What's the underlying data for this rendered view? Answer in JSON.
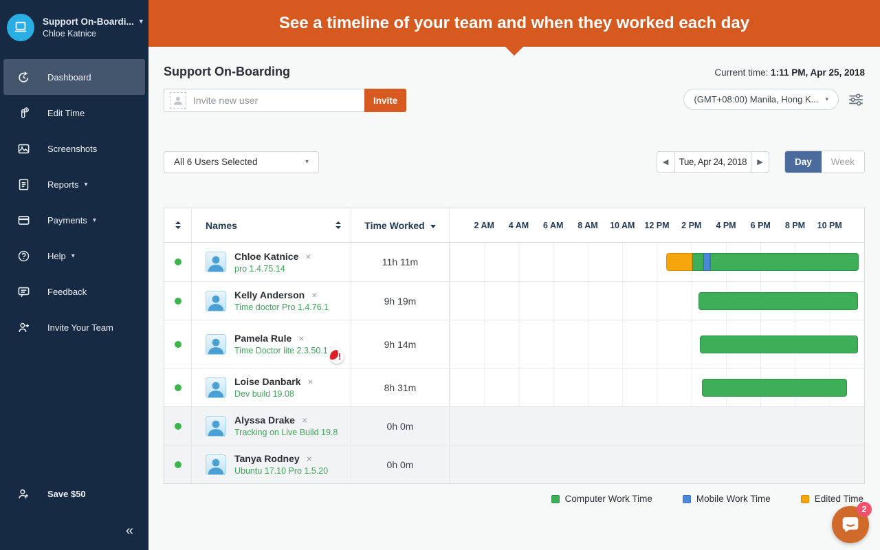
{
  "banner": {
    "text": "See a timeline of your team and when they worked each day"
  },
  "sidebar": {
    "company": "Support On-Boardi...",
    "user_name": "Chloe Katnice",
    "items": [
      {
        "id": "dashboard",
        "label": "Dashboard",
        "icon": "dashboard-icon",
        "active": true,
        "caret": false
      },
      {
        "id": "edit-time",
        "label": "Edit Time",
        "icon": "edit-time-icon",
        "active": false,
        "caret": false
      },
      {
        "id": "screenshots",
        "label": "Screenshots",
        "icon": "screenshots-icon",
        "active": false,
        "caret": false
      },
      {
        "id": "reports",
        "label": "Reports",
        "icon": "reports-icon",
        "active": false,
        "caret": true
      },
      {
        "id": "payments",
        "label": "Payments",
        "icon": "payments-icon",
        "active": false,
        "caret": true
      },
      {
        "id": "help",
        "label": "Help",
        "icon": "help-icon",
        "active": false,
        "caret": true
      },
      {
        "id": "feedback",
        "label": "Feedback",
        "icon": "feedback-icon",
        "active": false,
        "caret": false
      },
      {
        "id": "invite-your-team",
        "label": "Invite Your Team",
        "icon": "invite-icon",
        "active": false,
        "caret": false
      }
    ],
    "save_label": "Save $50",
    "collapse_icon": "«"
  },
  "header": {
    "title": "Support On-Boarding",
    "invite_placeholder": "Invite new user",
    "invite_button": "Invite",
    "current_time_label": "Current time:",
    "current_time_value": "1:11 PM, Apr 25, 2018",
    "timezone": "(GMT+08:00) Manila, Hong K..."
  },
  "controls": {
    "users_dropdown": "All 6 Users Selected",
    "date": "Tue, Apr 24, 2018",
    "day_label": "Day",
    "week_label": "Week"
  },
  "table": {
    "headers": {
      "names": "Names",
      "time_worked": "Time Worked"
    },
    "hours": [
      "2 AM",
      "4 AM",
      "6 AM",
      "8 AM",
      "10 AM",
      "12 PM",
      "2 PM",
      "4 PM",
      "6 PM",
      "8 PM",
      "10 PM"
    ],
    "rows": [
      {
        "name": "Chloe Katnice",
        "app": "pro 1.4.75.14",
        "time": "11h 11m",
        "status": "online",
        "warning": false,
        "muted": false,
        "segments": [
          {
            "type": "edited",
            "start": 12.55,
            "end": 14.05
          },
          {
            "type": "computer",
            "start": 14.05,
            "end": 14.68
          },
          {
            "type": "mobile",
            "start": 14.68,
            "end": 15.08
          },
          {
            "type": "computer",
            "start": 15.08,
            "end": 23.7
          }
        ]
      },
      {
        "name": "Kelly Anderson",
        "app": "Time doctor Pro 1.4.76.1",
        "time": "9h 19m",
        "status": "online",
        "warning": false,
        "muted": false,
        "segments": [
          {
            "type": "computer",
            "start": 14.4,
            "end": 23.65
          }
        ]
      },
      {
        "name": "Pamela Rule",
        "app": "Time Doctor lite 2.3.50.1",
        "time": "9h 14m",
        "status": "online",
        "warning": true,
        "muted": false,
        "segments": [
          {
            "type": "computer",
            "start": 14.5,
            "end": 23.65
          }
        ]
      },
      {
        "name": "Loise Danbark",
        "app": "Dev build 19.08",
        "time": "8h 31m",
        "status": "online",
        "warning": false,
        "muted": false,
        "segments": [
          {
            "type": "computer",
            "start": 14.6,
            "end": 23.0
          }
        ]
      },
      {
        "name": "Alyssa Drake",
        "app": "Tracking on Live Build 19.8",
        "time": "0h 0m",
        "status": "online",
        "warning": false,
        "muted": true,
        "segments": []
      },
      {
        "name": "Tanya Rodney",
        "app": "Ubuntu 17.10 Pro 1.5.20",
        "time": "0h 0m",
        "status": "online",
        "warning": false,
        "muted": true,
        "segments": []
      }
    ]
  },
  "legend": [
    {
      "label": "Computer Work Time",
      "type": "computer"
    },
    {
      "label": "Mobile Work Time",
      "type": "mobile"
    },
    {
      "label": "Edited Time",
      "type": "edited"
    }
  ],
  "colors": {
    "computer": "#3fae58",
    "computer_border": "#2e9247",
    "mobile": "#4c87d8",
    "mobile_border": "#3a6fbe",
    "edited": "#f6a60d",
    "edited_border": "#d68f00",
    "accent_orange": "#d65a1f",
    "online_green": "#3cb54a"
  },
  "chat": {
    "badge": "2"
  }
}
